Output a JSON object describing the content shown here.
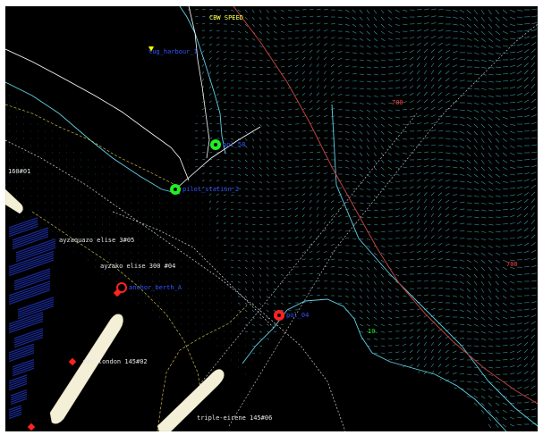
{
  "map": {
    "background": "#000000",
    "colors": {
      "current_vector": "#3fb6c8",
      "shoreline": "#5fd0e6",
      "boundary": "#ffffff",
      "depth_contour": "#c7b24a",
      "fairway": "#c04040",
      "anchor_green": "#22ee22",
      "anchor_red": "#ff2222",
      "berth_blue": "#1a2a9a",
      "hull_fill": "#f4f0d8",
      "label_white": "#e6e6e6",
      "label_blue": "#3355ff",
      "label_yellow": "#ffff44"
    },
    "header_label": "CBW SPEED",
    "fairway_labels": [
      "700",
      "700"
    ],
    "depth_label": "160#01",
    "green_depth_value": "10",
    "vessels": [
      {
        "name": "ayzaquazo elise 3#05",
        "icon": "none"
      },
      {
        "name": "ayzako elise 300 #04",
        "icon": "none"
      },
      {
        "name": "msc london 145#02",
        "icon": "red-square"
      },
      {
        "name": "triple-eirene 145#06",
        "icon": "none"
      }
    ],
    "targets": [
      {
        "label": "tug_harbour_1",
        "icon": "yellow-triangle"
      },
      {
        "label": "pol_58",
        "icon": "green-circle"
      },
      {
        "label": "pilot_station_2",
        "icon": "green-circle"
      },
      {
        "label": "anchor_berth_A",
        "icon": "red-circle"
      },
      {
        "label": "pol_04",
        "icon": "red-circle"
      }
    ]
  }
}
